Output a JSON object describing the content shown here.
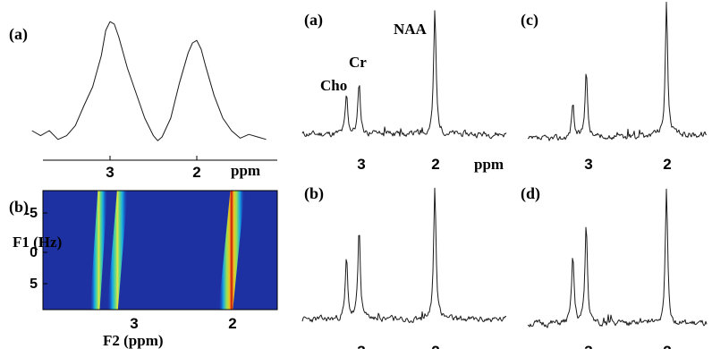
{
  "chart_data": [
    {
      "type": "line",
      "panel_label": "(a)",
      "x_unit": "ppm",
      "xticks": [
        "3",
        "2"
      ],
      "x": [
        3.9,
        3.8,
        3.7,
        3.6,
        3.5,
        3.4,
        3.3,
        3.2,
        3.1,
        3.05,
        3.0,
        2.95,
        2.9,
        2.8,
        2.7,
        2.6,
        2.5,
        2.45,
        2.4,
        2.3,
        2.2,
        2.1,
        2.05,
        2.0,
        1.95,
        1.9,
        1.8,
        1.7,
        1.6,
        1.5,
        1.4,
        1.3,
        1.2
      ],
      "values": [
        0.1,
        0.06,
        0.1,
        0.03,
        0.06,
        0.14,
        0.3,
        0.45,
        0.7,
        0.9,
        0.97,
        0.95,
        0.85,
        0.6,
        0.4,
        0.2,
        0.06,
        0.02,
        0.05,
        0.2,
        0.48,
        0.72,
        0.8,
        0.82,
        0.75,
        0.62,
        0.38,
        0.2,
        0.1,
        0.04,
        0.07,
        0.05,
        0.03
      ]
    },
    {
      "type": "heatmap",
      "panel_label": "(b)",
      "xlabel": "F2 (ppm)",
      "ylabel": "F1 (Hz)",
      "xticks": [
        "3",
        "2"
      ],
      "yticks": [
        "-5",
        "0",
        "5"
      ],
      "peaks": [
        {
          "f2_ppm_at_f1_neg": 3.32,
          "f2_ppm_at_f1_pos": 3.4,
          "intensity": 0.5
        },
        {
          "f2_ppm_at_f1_neg": 3.12,
          "f2_ppm_at_f1_pos": 3.22,
          "intensity": 0.6
        },
        {
          "f2_ppm_at_f1_neg": 1.95,
          "f2_ppm_at_f1_pos": 2.07,
          "intensity": 1.0
        }
      ]
    },
    {
      "type": "line",
      "panel_label": "(a)",
      "x_unit": "ppm",
      "xticks": [
        "3",
        "2"
      ],
      "annotations": [
        "Cho",
        "Cr",
        "NAA"
      ],
      "peaks_ppm": [
        3.2,
        3.03,
        2.01
      ],
      "peak_heights": [
        0.3,
        0.4,
        0.96
      ]
    },
    {
      "type": "line",
      "panel_label": "(b)",
      "xticks": [
        "3",
        "2"
      ],
      "peaks_ppm": [
        3.2,
        3.03,
        2.01
      ],
      "peak_heights": [
        0.45,
        0.67,
        1.0
      ]
    },
    {
      "type": "line",
      "panel_label": "(c)",
      "xticks": [
        "3",
        "2"
      ],
      "peaks_ppm": [
        3.2,
        3.03,
        2.01
      ],
      "peak_heights": [
        0.27,
        0.52,
        1.0
      ]
    },
    {
      "type": "line",
      "panel_label": "(d)",
      "xticks": [
        "3",
        "2"
      ],
      "peaks_ppm": [
        3.2,
        3.03,
        2.01
      ],
      "peak_heights": [
        0.49,
        0.72,
        1.0
      ]
    }
  ]
}
